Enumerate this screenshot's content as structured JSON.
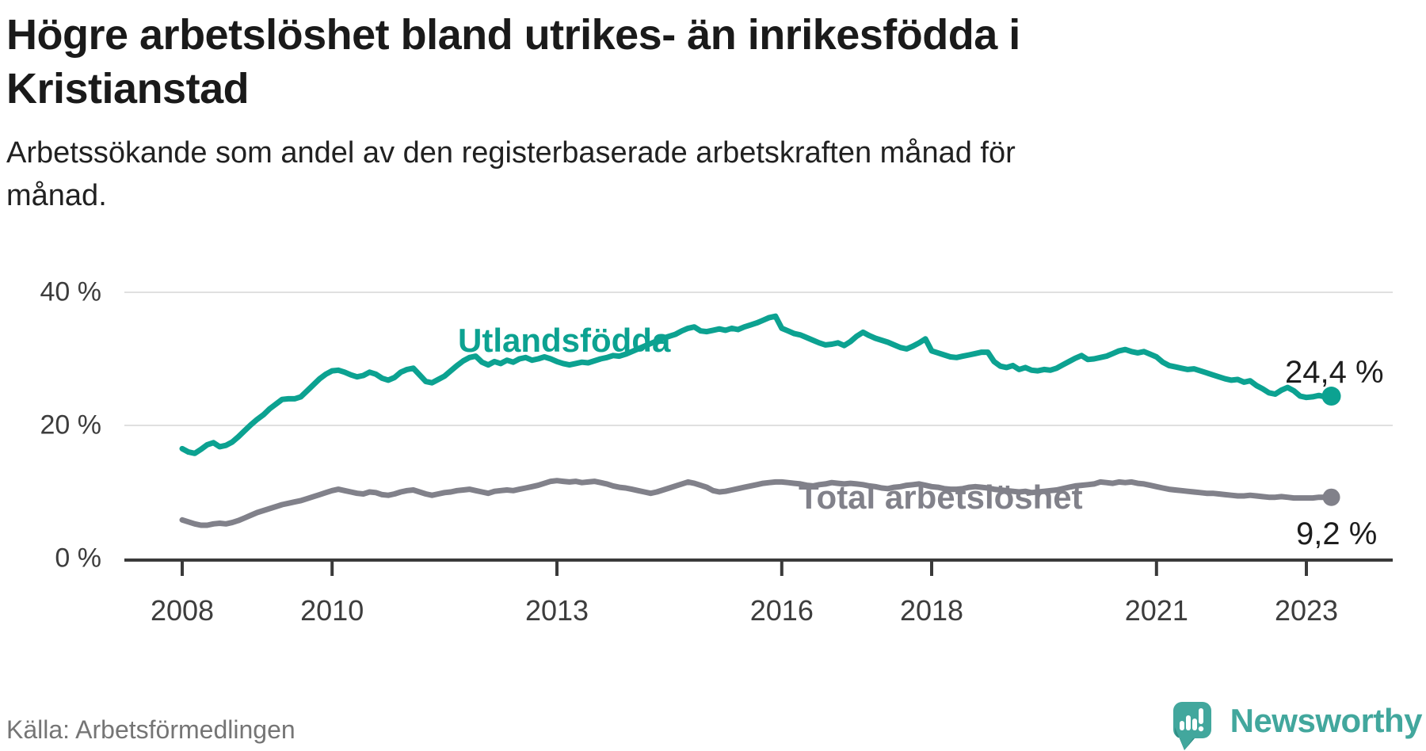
{
  "header": {
    "title_lines": [
      "Högre arbetslöshet bland utrikes- än inrikesfödda i",
      "Kristianstad"
    ],
    "subtitle_lines": [
      "Arbetssökande som andel av den registerbaserade arbetskraften månad för",
      "månad."
    ]
  },
  "footer": {
    "source": "Källa: Arbetsförmedlingen",
    "brand_name": "Newsworthy"
  },
  "colors": {
    "teal_line": "#0ca291",
    "gray_line": "#81818a",
    "grid": "#e0e0e0",
    "axis": "#3a3a3a",
    "axis_text": "#3d3d3d",
    "end_label_text": "#1d1d1d",
    "logo_teal": "#42a79d",
    "logo_teal_dark": "#2f8e85"
  },
  "chart_data": {
    "type": "line",
    "title": "Högre arbetslöshet bland utrikes- än inrikesfödda i Kristianstad",
    "subtitle": "Arbetssökande som andel av den registerbaserade arbetskraften månad för månad.",
    "unit": "%",
    "x_start_year": 2008,
    "frequency": "monthly",
    "grid": "horizontal-only",
    "legend_position": "inline-labels",
    "ylim": [
      0,
      40
    ],
    "y_ticks": [
      {
        "value": 40,
        "label": "40 %"
      },
      {
        "value": 20,
        "label": "20 %"
      },
      {
        "value": 0,
        "label": "0 %"
      }
    ],
    "x_ticks": [
      {
        "year": 2008,
        "label": "2008"
      },
      {
        "year": 2010,
        "label": "2010"
      },
      {
        "year": 2013,
        "label": "2013"
      },
      {
        "year": 2016,
        "label": "2016"
      },
      {
        "year": 2018,
        "label": "2018"
      },
      {
        "year": 2021,
        "label": "2021"
      },
      {
        "year": 2023,
        "label": "2023"
      }
    ],
    "series": [
      {
        "name": "Utlandsfödda",
        "color": "#0ca291",
        "end_value": 24.4,
        "end_label": "24,4 %",
        "values": [
          16.5,
          16.0,
          15.8,
          16.4,
          17.1,
          17.4,
          16.8,
          17.0,
          17.5,
          18.3,
          19.2,
          20.1,
          20.9,
          21.6,
          22.5,
          23.2,
          23.9,
          24.0,
          24.0,
          24.3,
          25.2,
          26.1,
          27.0,
          27.7,
          28.2,
          28.3,
          28.0,
          27.6,
          27.3,
          27.5,
          28.0,
          27.7,
          27.1,
          26.8,
          27.2,
          28.0,
          28.4,
          28.6,
          27.6,
          26.6,
          26.4,
          26.9,
          27.4,
          28.2,
          29.0,
          29.7,
          30.2,
          30.4,
          29.5,
          29.1,
          29.6,
          29.3,
          29.8,
          29.5,
          30.0,
          30.2,
          29.8,
          30.0,
          30.3,
          30.0,
          29.6,
          29.3,
          29.1,
          29.3,
          29.5,
          29.4,
          29.7,
          30.0,
          30.2,
          30.5,
          30.4,
          30.7,
          31.1,
          31.5,
          31.9,
          32.3,
          32.7,
          33.1,
          33.4,
          33.7,
          34.2,
          34.6,
          34.8,
          34.2,
          34.1,
          34.3,
          34.5,
          34.3,
          34.6,
          34.4,
          34.8,
          35.1,
          35.4,
          35.8,
          36.2,
          36.4,
          34.6,
          34.2,
          33.8,
          33.6,
          33.2,
          32.8,
          32.4,
          32.1,
          32.2,
          32.4,
          32.0,
          32.6,
          33.4,
          34.0,
          33.5,
          33.1,
          32.8,
          32.5,
          32.1,
          31.7,
          31.5,
          31.9,
          32.4,
          33.0,
          31.2,
          30.9,
          30.6,
          30.3,
          30.2,
          30.4,
          30.6,
          30.8,
          31.0,
          31.0,
          29.6,
          28.9,
          28.7,
          29.0,
          28.4,
          28.7,
          28.3,
          28.2,
          28.4,
          28.3,
          28.6,
          29.1,
          29.6,
          30.1,
          30.5,
          29.9,
          30.0,
          30.2,
          30.4,
          30.8,
          31.2,
          31.4,
          31.1,
          30.9,
          31.1,
          30.7,
          30.3,
          29.5,
          29.0,
          28.8,
          28.6,
          28.4,
          28.5,
          28.2,
          27.9,
          27.6,
          27.3,
          27.0,
          26.8,
          26.9,
          26.5,
          26.7,
          26.0,
          25.5,
          24.9,
          24.7,
          25.3,
          25.7,
          25.2,
          24.4,
          24.2,
          24.3,
          24.5,
          24.3,
          24.4
        ]
      },
      {
        "name": "Total arbetslöshet",
        "color": "#81818a",
        "end_value": 9.2,
        "end_label": "9,2 %",
        "values": [
          5.8,
          5.5,
          5.2,
          5.0,
          5.0,
          5.2,
          5.3,
          5.2,
          5.4,
          5.7,
          6.1,
          6.5,
          6.9,
          7.2,
          7.5,
          7.8,
          8.1,
          8.3,
          8.5,
          8.7,
          9.0,
          9.3,
          9.6,
          9.9,
          10.2,
          10.4,
          10.2,
          10.0,
          9.8,
          9.7,
          10.0,
          9.9,
          9.6,
          9.5,
          9.7,
          10.0,
          10.2,
          10.3,
          10.0,
          9.7,
          9.5,
          9.7,
          9.9,
          10.0,
          10.2,
          10.3,
          10.4,
          10.2,
          10.0,
          9.8,
          10.1,
          10.2,
          10.3,
          10.2,
          10.4,
          10.6,
          10.8,
          11.0,
          11.3,
          11.6,
          11.7,
          11.6,
          11.5,
          11.6,
          11.4,
          11.5,
          11.6,
          11.4,
          11.2,
          10.9,
          10.7,
          10.6,
          10.4,
          10.2,
          10.0,
          9.8,
          10.0,
          10.3,
          10.6,
          10.9,
          11.2,
          11.5,
          11.3,
          11.0,
          10.7,
          10.2,
          10.0,
          10.1,
          10.3,
          10.5,
          10.7,
          10.9,
          11.1,
          11.3,
          11.4,
          11.5,
          11.5,
          11.4,
          11.3,
          11.2,
          11.0,
          10.9,
          11.1,
          11.2,
          11.4,
          11.3,
          11.2,
          11.3,
          11.2,
          11.1,
          10.9,
          10.8,
          10.6,
          10.5,
          10.7,
          10.8,
          11.0,
          11.1,
          11.2,
          11.0,
          10.8,
          10.7,
          10.5,
          10.4,
          10.4,
          10.5,
          10.7,
          10.8,
          10.7,
          10.6,
          10.4,
          10.3,
          10.2,
          10.1,
          10.0,
          10.1,
          9.9,
          10.0,
          10.1,
          10.2,
          10.3,
          10.5,
          10.7,
          10.9,
          11.0,
          11.1,
          11.2,
          11.5,
          11.4,
          11.3,
          11.5,
          11.4,
          11.5,
          11.3,
          11.2,
          11.0,
          10.8,
          10.6,
          10.4,
          10.3,
          10.2,
          10.1,
          10.0,
          9.9,
          9.8,
          9.8,
          9.7,
          9.6,
          9.5,
          9.4,
          9.4,
          9.5,
          9.4,
          9.3,
          9.2,
          9.2,
          9.3,
          9.2,
          9.1,
          9.1,
          9.1,
          9.1,
          9.2,
          9.2,
          9.2
        ]
      }
    ]
  }
}
